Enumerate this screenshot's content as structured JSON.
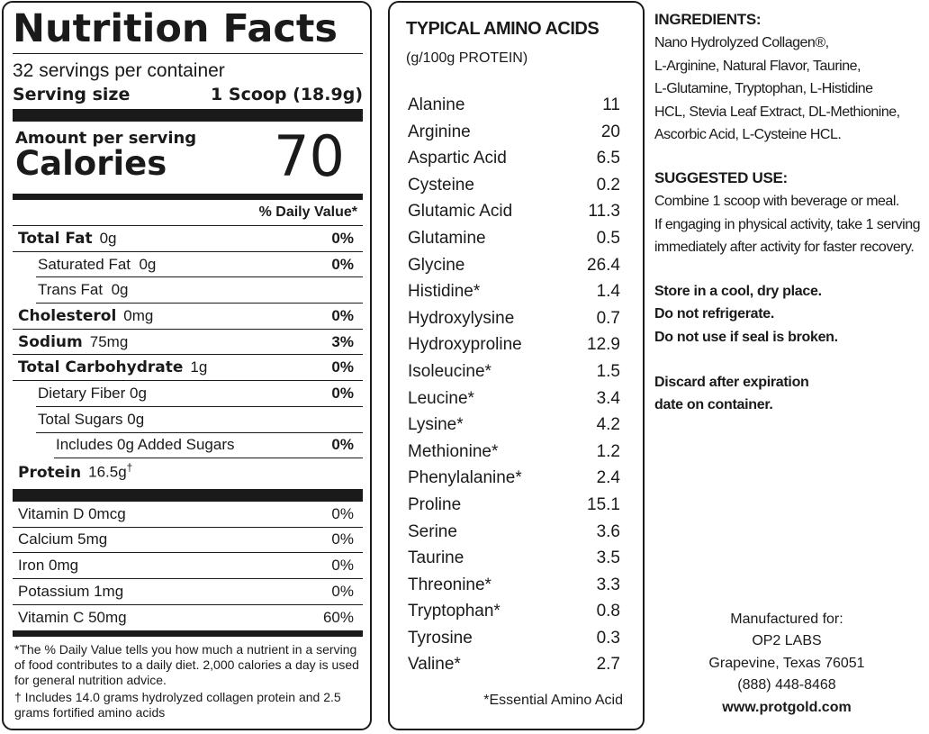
{
  "nutrition": {
    "title": "Nutrition Facts",
    "servings": "32 servings per container",
    "serving_size_label": "Serving size",
    "serving_size_value": "1 Scoop (18.9g)",
    "amount_per_serving": "Amount per serving",
    "calories_label": "Calories",
    "calories_value": "70",
    "dv_header": "% Daily Value*",
    "rows": [
      {
        "label": "Total Fat",
        "amount": "0g",
        "dv": "0%"
      },
      {
        "label": "Saturated Fat",
        "amount": "0g",
        "dv": "0%"
      },
      {
        "label": "Trans Fat",
        "amount": "0g",
        "dv": ""
      },
      {
        "label": "Cholesterol",
        "amount": "0mg",
        "dv": "0%"
      },
      {
        "label": "Sodium",
        "amount": "75mg",
        "dv": "3%"
      },
      {
        "label": "Total Carbohydrate",
        "amount": "1g",
        "dv": "0%"
      },
      {
        "label": "Dietary Fiber",
        "amount": "0g",
        "dv": "0%"
      },
      {
        "label": "Total Sugars",
        "amount": "0g",
        "dv": ""
      },
      {
        "label": "Includes 0g Added Sugars",
        "amount": "",
        "dv": "0%"
      },
      {
        "label": "Protein",
        "amount": "16.5g",
        "mark": "†",
        "dv": ""
      }
    ],
    "vitamins": [
      {
        "label": "Vitamin D 0mcg",
        "dv": "0%"
      },
      {
        "label": "Calcium 5mg",
        "dv": "0%"
      },
      {
        "label": "Iron 0mg",
        "dv": "0%"
      },
      {
        "label": "Potassium 1mg",
        "dv": "0%"
      },
      {
        "label": "Vitamin C 50mg",
        "dv": "60%"
      }
    ],
    "footnote1": "*The % Daily Value tells you how much a nutrient in a serving of food contributes to a daily diet. 2,000 calories a day is used for general nutrition advice.",
    "footnote2": "† Includes 14.0 grams hydrolyzed collagen protein and 2.5 grams fortified amino acids"
  },
  "amino": {
    "title": "TYPICAL AMINO ACIDS",
    "subtitle": "(g/100g PROTEIN)",
    "items": [
      {
        "name": "Alanine",
        "value": "11"
      },
      {
        "name": "Arginine",
        "value": "20"
      },
      {
        "name": "Aspartic Acid",
        "value": "6.5"
      },
      {
        "name": "Cysteine",
        "value": "0.2"
      },
      {
        "name": "Glutamic Acid",
        "value": "11.3"
      },
      {
        "name": "Glutamine",
        "value": "0.5"
      },
      {
        "name": "Glycine",
        "value": "26.4"
      },
      {
        "name": "Histidine*",
        "value": "1.4"
      },
      {
        "name": "Hydroxylysine",
        "value": "0.7"
      },
      {
        "name": "Hydroxyproline",
        "value": "12.9"
      },
      {
        "name": "Isoleucine*",
        "value": "1.5"
      },
      {
        "name": "Leucine*",
        "value": "3.4"
      },
      {
        "name": "Lysine*",
        "value": "4.2"
      },
      {
        "name": "Methionine*",
        "value": "1.2"
      },
      {
        "name": "Phenylalanine*",
        "value": "2.4"
      },
      {
        "name": "Proline",
        "value": "15.1"
      },
      {
        "name": "Serine",
        "value": "3.6"
      },
      {
        "name": "Taurine",
        "value": "3.5"
      },
      {
        "name": "Threonine*",
        "value": "3.3"
      },
      {
        "name": "Tryptophan*",
        "value": "0.8"
      },
      {
        "name": "Tyrosine",
        "value": "0.3"
      },
      {
        "name": "Valine*",
        "value": "2.7"
      }
    ],
    "footnote": "*Essential Amino Acid"
  },
  "ingredients": {
    "heading": "INGREDIENTS:",
    "lines": [
      "Nano Hydrolyzed Collagen®,",
      "L-Arginine, Natural Flavor, Taurine,",
      "L-Glutamine, Tryptophan, L-Histidine",
      "HCL, Stevia Leaf Extract, DL-Methionine,",
      "Ascorbic Acid, L-Cysteine HCL."
    ]
  },
  "suggested_use": {
    "heading": "SUGGESTED USE:",
    "lines": [
      "Combine 1 scoop with beverage or meal.",
      "If engaging in physical activity, take 1 serving",
      "immediately after activity for faster recovery."
    ]
  },
  "storage": {
    "lines": [
      "Store in a cool, dry place.",
      "Do not refrigerate.",
      "Do not use if seal is broken."
    ]
  },
  "discard": {
    "lines": [
      "Discard after expiration",
      "date on container."
    ]
  },
  "manufacturer": {
    "label": "Manufactured for:",
    "name": "OP2 LABS",
    "city": "Grapevine, Texas 76051",
    "phone": "(888) 448-8468",
    "website": "www.protgold.com"
  }
}
